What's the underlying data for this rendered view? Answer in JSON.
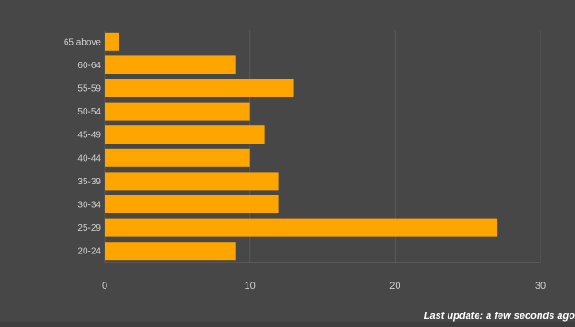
{
  "chart_data": {
    "type": "bar",
    "orientation": "horizontal",
    "categories": [
      "65 above",
      "60-64",
      "55-59",
      "50-54",
      "45-49",
      "40-44",
      "35-39",
      "30-34",
      "25-29",
      "20-24"
    ],
    "values": [
      1,
      9,
      13,
      10,
      11,
      10,
      12,
      12,
      27,
      9
    ],
    "title": "",
    "xlabel": "",
    "ylabel": "",
    "xlim": [
      0,
      30
    ],
    "x_ticks": [
      0,
      10,
      20,
      30
    ],
    "grid": true,
    "legend": "none",
    "bar_color": "#ffa500",
    "background_color": "#474747"
  },
  "footer": {
    "text": "Last update: a few seconds ago"
  }
}
